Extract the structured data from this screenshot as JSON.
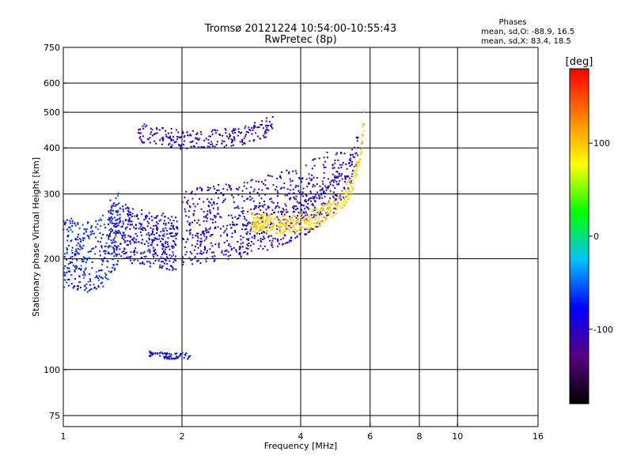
{
  "chart_data": {
    "type": "scatter",
    "title": "Tromsø 20121224 10:54:00-10:55:43",
    "subtitle": "RwPretec (8p)",
    "xlabel": "Frequency [MHz]",
    "ylabel": "Stationary phase Virtual Height [km]",
    "x_scale": "log",
    "y_scale": "log",
    "xlim": [
      1,
      16
    ],
    "ylim": [
      70,
      750
    ],
    "x_ticks": [
      1,
      2,
      4,
      6,
      8,
      10,
      16
    ],
    "y_ticks": [
      75,
      100,
      200,
      300,
      400,
      500,
      600,
      750
    ],
    "grid": true,
    "stats": {
      "title": "Phases",
      "line1": "mean, sd,O: -88.9, 16.5",
      "line2": "mean, sd,X:  83.4, 18.5"
    },
    "colorbar": {
      "label": "[deg]",
      "min": -180,
      "max": 180,
      "ticks": [
        100,
        0,
        -100
      ],
      "tick_labels": [
        "100",
        "0",
        "-100"
      ],
      "colors": [
        "#000000",
        "#5a0080",
        "#0000ff",
        "#00c0ff",
        "#00ff00",
        "#ffff00",
        "#ff8000",
        "#ff0000"
      ]
    },
    "traces": [
      {
        "name": "O-mode F layer low-frequency spread",
        "phase": -85,
        "x_range": [
          1.3,
          1.95
        ],
        "y_curve": [
          [
            1.3,
            230
          ],
          [
            1.5,
            215
          ],
          [
            1.7,
            210
          ],
          [
            1.95,
            205
          ]
        ],
        "spread": 0.35,
        "count": 420
      },
      {
        "name": "O-mode F layer trace",
        "phase": -95,
        "x_range": [
          2.0,
          5.6
        ],
        "y_curve": [
          [
            2.0,
            205
          ],
          [
            2.8,
            215
          ],
          [
            3.5,
            230
          ],
          [
            4.2,
            250
          ],
          [
            4.8,
            280
          ],
          [
            5.3,
            320
          ],
          [
            5.55,
            380
          ],
          [
            5.65,
            450
          ]
        ],
        "spread": 0.22,
        "count": 520
      },
      {
        "name": "O-mode upper spread",
        "phase": -95,
        "x_range": [
          2.0,
          5.2
        ],
        "y_curve": [
          [
            2.0,
            260
          ],
          [
            3.0,
            275
          ],
          [
            4.0,
            300
          ],
          [
            5.0,
            340
          ]
        ],
        "spread": 0.25,
        "count": 360
      },
      {
        "name": "O-mode high traces",
        "phase": -100,
        "x_range": [
          1.55,
          3.4
        ],
        "y_curve": [
          [
            1.55,
            430
          ],
          [
            2.0,
            410
          ],
          [
            2.8,
            420
          ],
          [
            3.4,
            450
          ]
        ],
        "spread": 0.12,
        "count": 240
      },
      {
        "name": "X-mode F layer trace",
        "phase": 95,
        "x_range": [
          3.0,
          5.8
        ],
        "y_curve": [
          [
            3.0,
            245
          ],
          [
            3.8,
            240
          ],
          [
            4.5,
            255
          ],
          [
            5.0,
            275
          ],
          [
            5.4,
            310
          ],
          [
            5.7,
            380
          ],
          [
            5.8,
            480
          ]
        ],
        "spread": 0.12,
        "count": 420
      },
      {
        "name": "Low-frequency diffuse echoes",
        "phase": -70,
        "x_range": [
          1.0,
          1.4
        ],
        "y_curve": [
          [
            1.0,
            190
          ],
          [
            1.15,
            185
          ],
          [
            1.3,
            195
          ],
          [
            1.4,
            230
          ]
        ],
        "spread": 0.45,
        "count": 320
      },
      {
        "name": "Sporadic E trace",
        "phase": -80,
        "x_range": [
          1.65,
          2.1
        ],
        "y_curve": [
          [
            1.65,
            110
          ],
          [
            1.85,
            108
          ],
          [
            2.1,
            108
          ]
        ],
        "spread": 0.04,
        "count": 70
      }
    ]
  }
}
